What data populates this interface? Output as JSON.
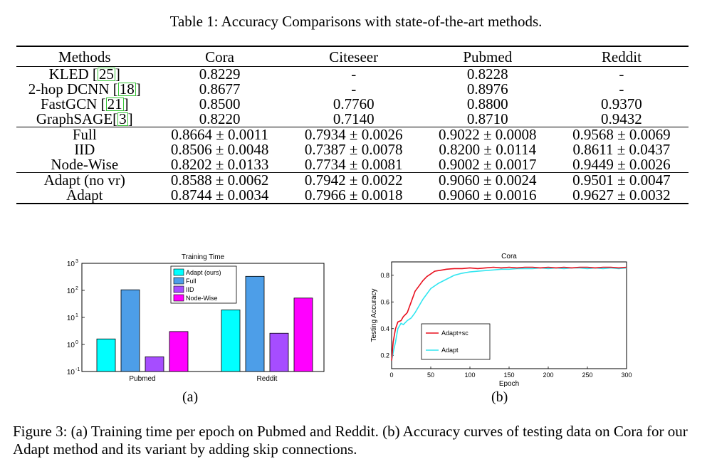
{
  "table": {
    "caption": "Table 1: Accuracy Comparisons with state-of-the-art methods.",
    "headers": [
      "Methods",
      "Cora",
      "Citeseer",
      "Pubmed",
      "Reddit"
    ],
    "baseline_rows": [
      {
        "method": "KLED ",
        "ref": "25",
        "close": "]",
        "cells": [
          "0.8229",
          "-",
          "0.8228",
          "-"
        ]
      },
      {
        "method": "2-hop DCNN ",
        "ref": "18",
        "close": "]",
        "cells": [
          "0.8677",
          "-",
          "0.8976",
          "-"
        ]
      },
      {
        "method": "FastGCN ",
        "ref": "21",
        "close": "]",
        "cells": [
          "0.8500",
          "0.7760",
          "0.8800",
          "0.9370"
        ]
      },
      {
        "method": "GraphSAGE",
        "ref": "3",
        "close": "]",
        "cells": [
          "0.8220",
          "0.7140",
          "0.8710",
          "0.9432"
        ]
      }
    ],
    "sampling_rows": [
      {
        "method": "Full",
        "cells": [
          "0.8664 ± 0.0011",
          "0.7934 ± 0.0026",
          "0.9022 ± 0.0008",
          "0.9568 ± 0.0069"
        ]
      },
      {
        "method": "IID",
        "cells": [
          "0.8506 ± 0.0048",
          "0.7387 ± 0.0078",
          "0.8200 ± 0.0114",
          "0.8611 ± 0.0437"
        ]
      },
      {
        "method": "Node-Wise",
        "cells": [
          "0.8202 ± 0.0133",
          "0.7734 ± 0.0081",
          "0.9002 ± 0.0017",
          "0.9449 ± 0.0026"
        ]
      }
    ],
    "adapt_rows": [
      {
        "method": "Adapt (no vr)",
        "cells": [
          "0.8588 ± 0.0062",
          "0.7942 ± 0.0022",
          "0.9060 ± 0.0024",
          "0.9501 ± 0.0047"
        ]
      },
      {
        "method": "Adapt",
        "cells": [
          "0.8744 ± 0.0034",
          "0.7966 ± 0.0018",
          "0.9060 ± 0.0016",
          "0.9627 ± 0.0032"
        ]
      }
    ]
  },
  "chart_data": [
    {
      "type": "bar",
      "title": "Training Time",
      "yscale": "log",
      "ylim": [
        0.1,
        1000
      ],
      "yticks": [
        "10",
        "10",
        "10",
        "10",
        "10"
      ],
      "ytick_exponents": [
        "-1",
        "0",
        "1",
        "2",
        "3"
      ],
      "ytick_values": [
        0.1,
        1,
        10,
        100,
        1000
      ],
      "categories": [
        "Pubmed",
        "Reddit"
      ],
      "series": [
        {
          "name": "Adapt (ours)",
          "color": "#00ffff",
          "values": [
            1.6,
            19
          ]
        },
        {
          "name": "Full",
          "color": "#4d9ee8",
          "values": [
            105,
            330
          ]
        },
        {
          "name": "IID",
          "color": "#a64dff",
          "values": [
            0.35,
            2.6
          ]
        },
        {
          "name": "Node-Wise",
          "color": "#ff00ff",
          "values": [
            3,
            52
          ]
        }
      ],
      "legend": "top-center",
      "sublabel": "(a)"
    },
    {
      "type": "line",
      "title": "Cora",
      "xlabel": "Epoch",
      "ylabel": "Testing Accuracy",
      "xlim": [
        0,
        300
      ],
      "ylim": [
        0.1,
        0.9
      ],
      "xticks": [
        "0",
        "50",
        "100",
        "150",
        "200",
        "250",
        "300"
      ],
      "xtick_values": [
        0,
        50,
        100,
        150,
        200,
        250,
        300
      ],
      "yticks": [
        "0.2",
        "0.4",
        "0.6",
        "0.8"
      ],
      "ytick_values": [
        0.2,
        0.4,
        0.6,
        0.8
      ],
      "series": [
        {
          "name": "Adapt+sc",
          "color": "#e8101e",
          "x": [
            0,
            2,
            5,
            8,
            12,
            15,
            20,
            25,
            30,
            35,
            40,
            45,
            50,
            55,
            60,
            65,
            70,
            80,
            90,
            100,
            110,
            120,
            130,
            140,
            150,
            160,
            170,
            180,
            190,
            200,
            210,
            220,
            230,
            240,
            250,
            260,
            270,
            280,
            290,
            300
          ],
          "y": [
            0.16,
            0.3,
            0.4,
            0.45,
            0.46,
            0.49,
            0.52,
            0.6,
            0.68,
            0.72,
            0.76,
            0.79,
            0.81,
            0.83,
            0.835,
            0.84,
            0.845,
            0.85,
            0.85,
            0.855,
            0.85,
            0.855,
            0.86,
            0.855,
            0.86,
            0.855,
            0.86,
            0.86,
            0.855,
            0.86,
            0.855,
            0.86,
            0.855,
            0.86,
            0.86,
            0.855,
            0.86,
            0.86,
            0.855,
            0.86
          ]
        },
        {
          "name": "Adapt",
          "color": "#33e6f0",
          "x": [
            0,
            2,
            5,
            8,
            12,
            15,
            20,
            25,
            30,
            35,
            40,
            45,
            50,
            60,
            70,
            80,
            90,
            100,
            110,
            120,
            130,
            140,
            150,
            160,
            170,
            180,
            190,
            200,
            210,
            220,
            230,
            240,
            250,
            260,
            270,
            280,
            290,
            300
          ],
          "y": [
            0.16,
            0.22,
            0.3,
            0.4,
            0.44,
            0.43,
            0.46,
            0.48,
            0.52,
            0.57,
            0.62,
            0.66,
            0.7,
            0.74,
            0.77,
            0.8,
            0.815,
            0.825,
            0.83,
            0.835,
            0.84,
            0.845,
            0.845,
            0.85,
            0.85,
            0.85,
            0.855,
            0.85,
            0.855,
            0.85,
            0.855,
            0.855,
            0.85,
            0.855,
            0.85,
            0.855,
            0.85,
            0.855
          ]
        }
      ],
      "legend": "bottom-left",
      "sublabel": "(b)"
    }
  ],
  "figure": {
    "caption": "Figure 3: (a) Training time per epoch on Pubmed and Reddit. (b) Accuracy curves of testing data on Cora for our Adapt method and its variant by adding skip connections."
  }
}
